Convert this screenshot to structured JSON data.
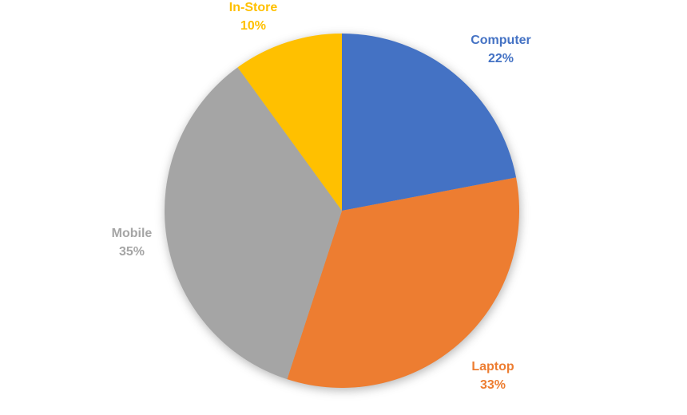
{
  "chart_data": {
    "type": "pie",
    "title": "",
    "categories": [
      "Computer",
      "Laptop",
      "Mobile",
      "In-Store"
    ],
    "values": [
      22,
      33,
      35,
      10
    ],
    "slices": [
      {
        "label": "Computer",
        "value": 22,
        "percent_label": "22%",
        "color": "#4472C4"
      },
      {
        "label": "Laptop",
        "value": 33,
        "percent_label": "33%",
        "color": "#ED7D31"
      },
      {
        "label": "Mobile",
        "value": 35,
        "percent_label": "35%",
        "color": "#A5A5A5"
      },
      {
        "label": "In-Store",
        "value": 10,
        "percent_label": "10%",
        "color": "#FFC000"
      }
    ],
    "start_angle_deg": 0,
    "direction": "clockwise",
    "legend": "none",
    "label_position": "outside-end",
    "background": "#FFFFFF"
  }
}
